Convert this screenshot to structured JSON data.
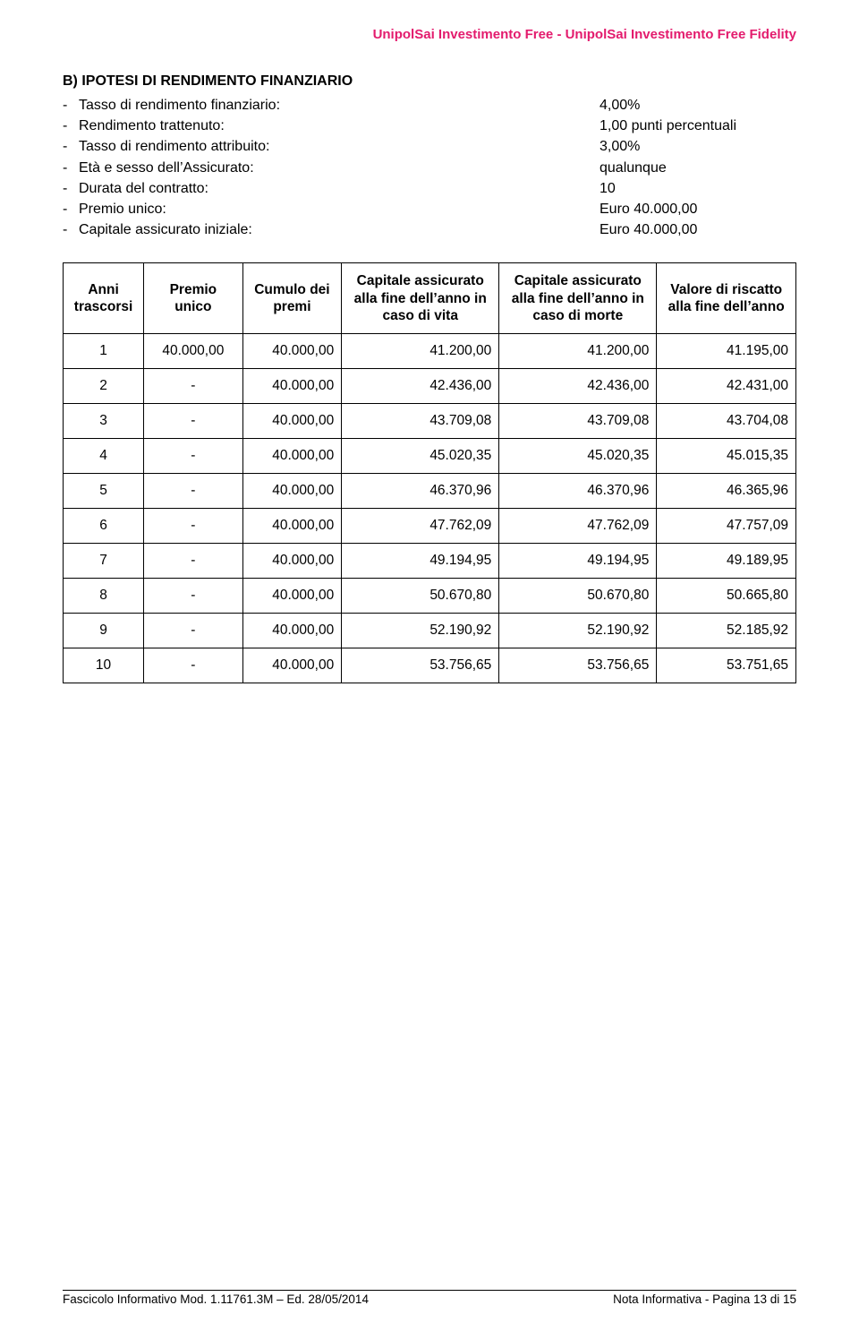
{
  "header": {
    "product_name": "UnipolSai Investimento Free - UnipolSai Investimento Free Fidelity"
  },
  "section_title": "B) IPOTESI DI RENDIMENTO FINANZIARIO",
  "defs": [
    {
      "label": "Tasso di rendimento finanziario:",
      "value": "4,00%"
    },
    {
      "label": "Rendimento trattenuto:",
      "value": "1,00 punti percentuali"
    },
    {
      "label": "Tasso di rendimento attribuito:",
      "value": "3,00%"
    },
    {
      "label": "Età e sesso dell’Assicurato:",
      "value": "qualunque"
    },
    {
      "label": "Durata del contratto:",
      "value": "10"
    },
    {
      "label": "Premio unico:",
      "value": "Euro 40.000,00"
    },
    {
      "label": "Capitale assicurato iniziale:",
      "value": "Euro 40.000,00"
    }
  ],
  "table": {
    "columns": [
      "Anni trascorsi",
      "Premio unico",
      "Cumulo dei premi",
      "Capitale assicurato alla fine dell’anno in caso di vita",
      "Capitale assicurato alla fine dell’anno in caso di morte",
      "Valore di riscatto alla fine dell’anno"
    ],
    "rows": [
      [
        "1",
        "40.000,00",
        "40.000,00",
        "41.200,00",
        "41.200,00",
        "41.195,00"
      ],
      [
        "2",
        "-",
        "40.000,00",
        "42.436,00",
        "42.436,00",
        "42.431,00"
      ],
      [
        "3",
        "-",
        "40.000,00",
        "43.709,08",
        "43.709,08",
        "43.704,08"
      ],
      [
        "4",
        "-",
        "40.000,00",
        "45.020,35",
        "45.020,35",
        "45.015,35"
      ],
      [
        "5",
        "-",
        "40.000,00",
        "46.370,96",
        "46.370,96",
        "46.365,96"
      ],
      [
        "6",
        "-",
        "40.000,00",
        "47.762,09",
        "47.762,09",
        "47.757,09"
      ],
      [
        "7",
        "-",
        "40.000,00",
        "49.194,95",
        "49.194,95",
        "49.189,95"
      ],
      [
        "8",
        "-",
        "40.000,00",
        "50.670,80",
        "50.670,80",
        "50.665,80"
      ],
      [
        "9",
        "-",
        "40.000,00",
        "52.190,92",
        "52.190,92",
        "52.185,92"
      ],
      [
        "10",
        "-",
        "40.000,00",
        "53.756,65",
        "53.756,65",
        "53.751,65"
      ]
    ]
  },
  "footer": {
    "left": "Fascicolo Informativo Mod. 1.11761.3M – Ed. 28/05/2014",
    "right": "Nota Informativa - Pagina 13 di 15"
  }
}
